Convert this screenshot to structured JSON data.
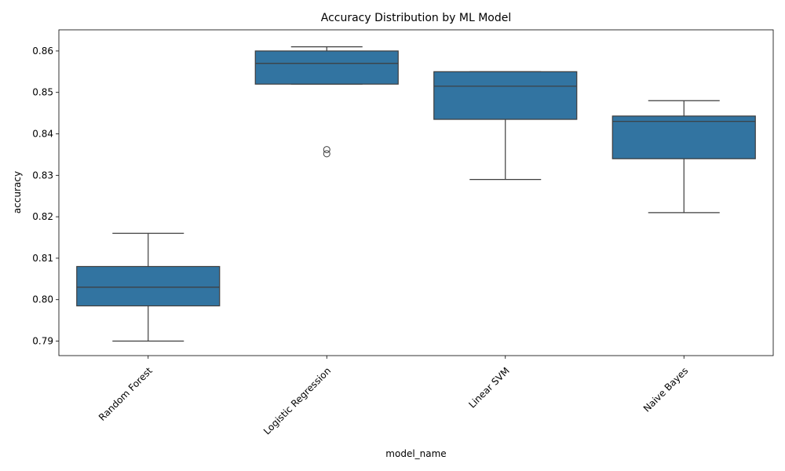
{
  "chart_data": {
    "type": "box",
    "title": "Accuracy Distribution by ML Model",
    "xlabel": "model_name",
    "ylabel": "accuracy",
    "categories": [
      "Random Forest",
      "Logistic Regression",
      "Linear SVM",
      "Naive Bayes"
    ],
    "yticks": [
      0.79,
      0.8,
      0.81,
      0.82,
      0.83,
      0.84,
      0.85,
      0.86
    ],
    "ylim": [
      0.7865,
      0.8651
    ],
    "boxes": [
      {
        "category": "Random Forest",
        "whisker_low": 0.79,
        "q1": 0.7985,
        "median": 0.803,
        "q3": 0.808,
        "whisker_high": 0.816,
        "outliers": []
      },
      {
        "category": "Logistic Regression",
        "whisker_low": 0.852,
        "q1": 0.852,
        "median": 0.857,
        "q3": 0.86,
        "whisker_high": 0.861,
        "outliers": [
          0.8362,
          0.8352
        ]
      },
      {
        "category": "Linear SVM",
        "whisker_low": 0.829,
        "q1": 0.8435,
        "median": 0.8515,
        "q3": 0.855,
        "whisker_high": 0.855,
        "outliers": []
      },
      {
        "category": "Naive Bayes",
        "whisker_low": 0.821,
        "q1": 0.834,
        "median": 0.843,
        "q3": 0.8443,
        "whisker_high": 0.848,
        "outliers": []
      }
    ],
    "box_color": "#3274a1",
    "line_color": "#3d3d3d",
    "grid": false,
    "legend": "none",
    "xtick_rotation": 45
  }
}
